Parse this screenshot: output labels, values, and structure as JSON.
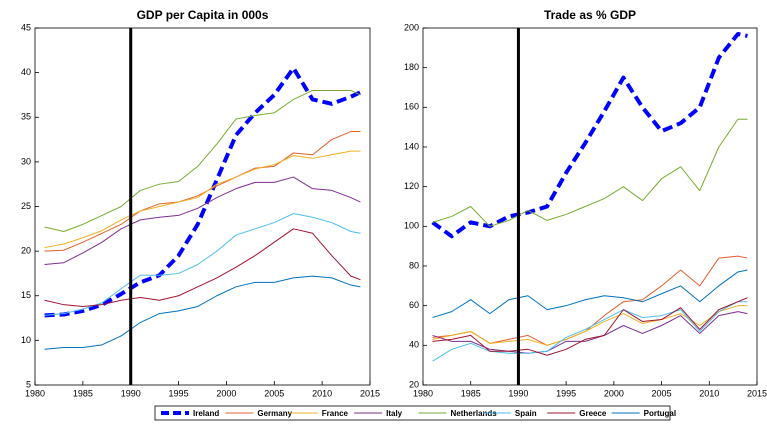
{
  "chart_data": [
    {
      "type": "line",
      "title": "GDP per Capita in 000s",
      "x": [
        1981,
        1983,
        1985,
        1987,
        1989,
        1991,
        1993,
        1995,
        1997,
        1999,
        2001,
        2003,
        2005,
        2007,
        2009,
        2011,
        2013,
        2014
      ],
      "xlim": [
        1980,
        2015
      ],
      "xticks": [
        1980,
        1985,
        1990,
        1995,
        2000,
        2005,
        2010,
        2015
      ],
      "ylim": [
        5,
        45
      ],
      "yticks": [
        5,
        10,
        15,
        20,
        25,
        30,
        35,
        40,
        45
      ],
      "vline": 1990,
      "series": [
        {
          "name": "Ireland",
          "color": "#0000ff",
          "dashed": true,
          "values": [
            12.8,
            12.9,
            13.3,
            14,
            15.2,
            16.5,
            17.3,
            19.5,
            23,
            28,
            33,
            35.5,
            37.5,
            40.5,
            37,
            36.5,
            37.3,
            37.8
          ]
        },
        {
          "name": "Germany",
          "color": "#e5602c",
          "values": [
            20.0,
            20.1,
            21.0,
            22.0,
            23.0,
            24.5,
            25.3,
            25.5,
            26.2,
            27.3,
            28.3,
            29.3,
            29.5,
            31,
            30.8,
            32.5,
            33.4,
            33.4
          ]
        },
        {
          "name": "France",
          "color": "#f0b020",
          "values": [
            20.4,
            20.8,
            21.5,
            22.3,
            23.5,
            24.5,
            25,
            25.5,
            26,
            27.5,
            28.3,
            29.2,
            29.7,
            30.7,
            30.4,
            30.8,
            31.2,
            31.2
          ]
        },
        {
          "name": "Italy",
          "color": "#7e2f8e",
          "values": [
            18.5,
            18.7,
            19.8,
            21,
            22.5,
            23.5,
            23.8,
            24,
            24.8,
            26,
            27,
            27.7,
            27.7,
            28.3,
            27,
            26.8,
            26,
            25.5
          ]
        },
        {
          "name": "Netherlands",
          "color": "#77ac30",
          "values": [
            22.7,
            22.2,
            23,
            24,
            25,
            26.8,
            27.5,
            27.8,
            29.5,
            32,
            34.8,
            35.2,
            35.5,
            37,
            38,
            38,
            38,
            37.5
          ]
        },
        {
          "name": "Spain",
          "color": "#4dbeee",
          "values": [
            12.8,
            13,
            13.5,
            14.2,
            15.8,
            17.3,
            17.3,
            17.5,
            18.5,
            20,
            21.8,
            22.5,
            23.2,
            24.2,
            23.8,
            23.2,
            22.2,
            22
          ]
        },
        {
          "name": "Greece",
          "color": "#a2142f",
          "values": [
            14.5,
            14,
            13.8,
            14,
            14.5,
            14.8,
            14.5,
            15,
            16,
            17,
            18.2,
            19.5,
            21,
            22.5,
            22,
            19.5,
            17.2,
            16.8
          ]
        },
        {
          "name": "Portugal",
          "color": "#0072bd",
          "values": [
            9,
            9.2,
            9.2,
            9.5,
            10.5,
            12,
            13,
            13.3,
            13.8,
            15,
            16,
            16.5,
            16.5,
            17,
            17.2,
            17,
            16.2,
            16
          ]
        }
      ]
    },
    {
      "type": "line",
      "title": "Trade as % GDP",
      "x": [
        1981,
        1983,
        1985,
        1987,
        1989,
        1991,
        1993,
        1995,
        1997,
        1999,
        2001,
        2003,
        2005,
        2007,
        2009,
        2011,
        2013,
        2014
      ],
      "xlim": [
        1980,
        2015
      ],
      "xticks": [
        1980,
        1985,
        1990,
        1995,
        2000,
        2005,
        2010,
        2015
      ],
      "ylim": [
        20,
        200
      ],
      "yticks": [
        20,
        40,
        60,
        80,
        100,
        120,
        140,
        160,
        180,
        200
      ],
      "vline": 1990,
      "series": [
        {
          "color": "#0000ff",
          "dashed": true,
          "values": [
            102,
            95,
            102,
            100,
            105,
            107,
            110,
            127,
            142,
            158,
            175,
            160,
            148,
            152,
            160,
            185,
            197,
            196
          ]
        },
        {
          "color": "#e5602c",
          "values": [
            44,
            45,
            47,
            41,
            43,
            45,
            40,
            43,
            47,
            55,
            62,
            63,
            70,
            78,
            70,
            84,
            85,
            84
          ]
        },
        {
          "color": "#f0b020",
          "values": [
            43,
            45,
            47,
            41,
            42,
            43,
            40,
            43,
            47,
            52,
            56,
            51,
            53,
            56,
            50,
            57,
            60,
            60
          ]
        },
        {
          "color": "#7e2f8e",
          "values": [
            45,
            42,
            42,
            38,
            37,
            36,
            37,
            42,
            42,
            45,
            50,
            46,
            50,
            55,
            46,
            55,
            57,
            56
          ]
        },
        {
          "color": "#77ac30",
          "values": [
            102,
            105,
            110,
            100,
            103,
            108,
            103,
            106,
            110,
            114,
            120,
            113,
            124,
            130,
            118,
            140,
            154,
            154
          ]
        },
        {
          "color": "#4dbeee",
          "values": [
            32,
            38,
            41,
            37,
            36,
            36,
            37,
            44,
            48,
            53,
            58,
            54,
            55,
            58,
            47,
            57,
            62,
            62
          ]
        },
        {
          "color": "#a2142f",
          "values": [
            42,
            43,
            45,
            37,
            37,
            38,
            35,
            38,
            43,
            45,
            58,
            52,
            53,
            59,
            48,
            58,
            62,
            64
          ]
        },
        {
          "color": "#0072bd",
          "values": [
            54,
            57,
            63,
            56,
            63,
            65,
            58,
            60,
            63,
            65,
            64,
            62,
            66,
            70,
            62,
            70,
            77,
            78
          ]
        }
      ]
    }
  ]
}
